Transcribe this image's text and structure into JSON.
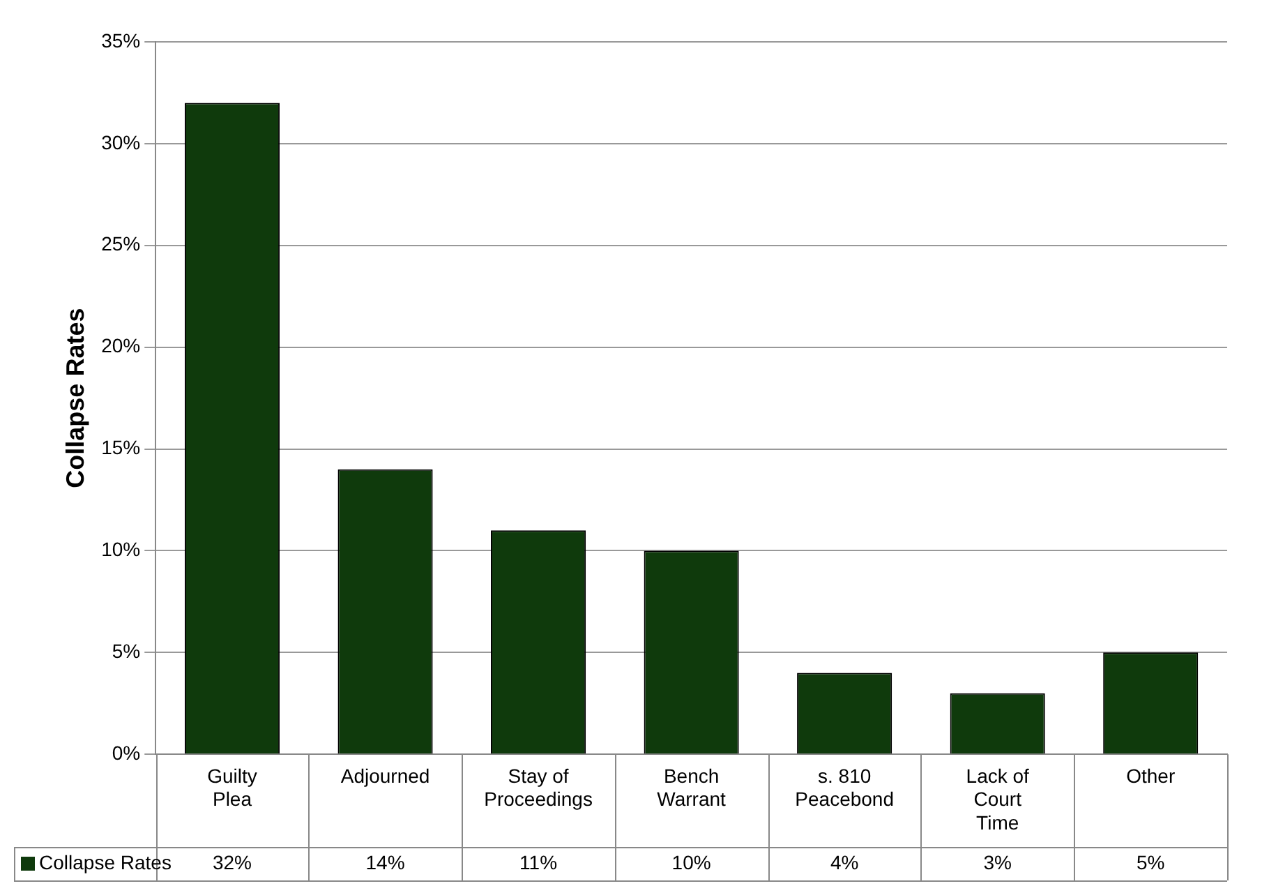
{
  "chart_data": {
    "type": "bar",
    "ylabel": "Collapse Rates",
    "categories": [
      "Guilty Plea",
      "Adjourned",
      "Stay of Proceedings",
      "Bench Warrant",
      "s. 810 Peacebond",
      "Lack of Court Time",
      "Other"
    ],
    "series": [
      {
        "name": "Collapse Rates",
        "color": "#0f3a0c",
        "values": [
          32,
          14,
          11,
          10,
          4,
          3,
          5
        ],
        "value_labels": [
          "32%",
          "14%",
          "11%",
          "10%",
          "4%",
          "3%",
          "5%"
        ]
      }
    ],
    "ylim": [
      0,
      35
    ],
    "yticks": [
      {
        "value": 0,
        "label": "0%"
      },
      {
        "value": 5,
        "label": "5%"
      },
      {
        "value": 10,
        "label": "10%"
      },
      {
        "value": 15,
        "label": "15%"
      },
      {
        "value": 20,
        "label": "20%"
      },
      {
        "value": 25,
        "label": "25%"
      },
      {
        "value": 30,
        "label": "30%"
      },
      {
        "value": 35,
        "label": "35%"
      }
    ],
    "grid": "y",
    "legend": "bottom left"
  }
}
